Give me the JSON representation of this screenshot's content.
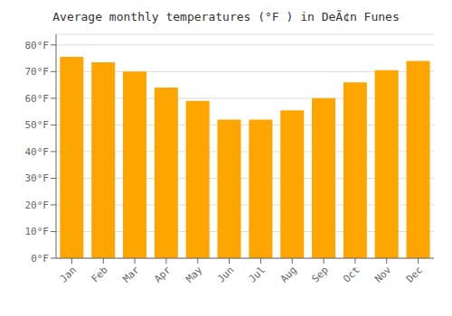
{
  "chart_data": {
    "type": "bar",
    "title": "Average monthly temperatures (°F ) in DeÃ¢n Funes",
    "categories": [
      "Jan",
      "Feb",
      "Mar",
      "Apr",
      "May",
      "Jun",
      "Jul",
      "Aug",
      "Sep",
      "Oct",
      "Nov",
      "Dec"
    ],
    "values": [
      75.5,
      73.5,
      70.0,
      64.0,
      59.0,
      52.0,
      52.0,
      55.5,
      60.0,
      66.0,
      70.5,
      74.0
    ],
    "color": "#FFA500",
    "ylim": [
      0,
      84
    ],
    "yticks": [
      {
        "value": 0,
        "label": "0°F"
      },
      {
        "value": 10,
        "label": "10°F"
      },
      {
        "value": 20,
        "label": "20°F"
      },
      {
        "value": 30,
        "label": "30°F"
      },
      {
        "value": 40,
        "label": "40°F"
      },
      {
        "value": 50,
        "label": "50°F"
      },
      {
        "value": 60,
        "label": "60°F"
      },
      {
        "value": 70,
        "label": "70°F"
      },
      {
        "value": 80,
        "label": "80°F"
      }
    ],
    "grid": true
  }
}
